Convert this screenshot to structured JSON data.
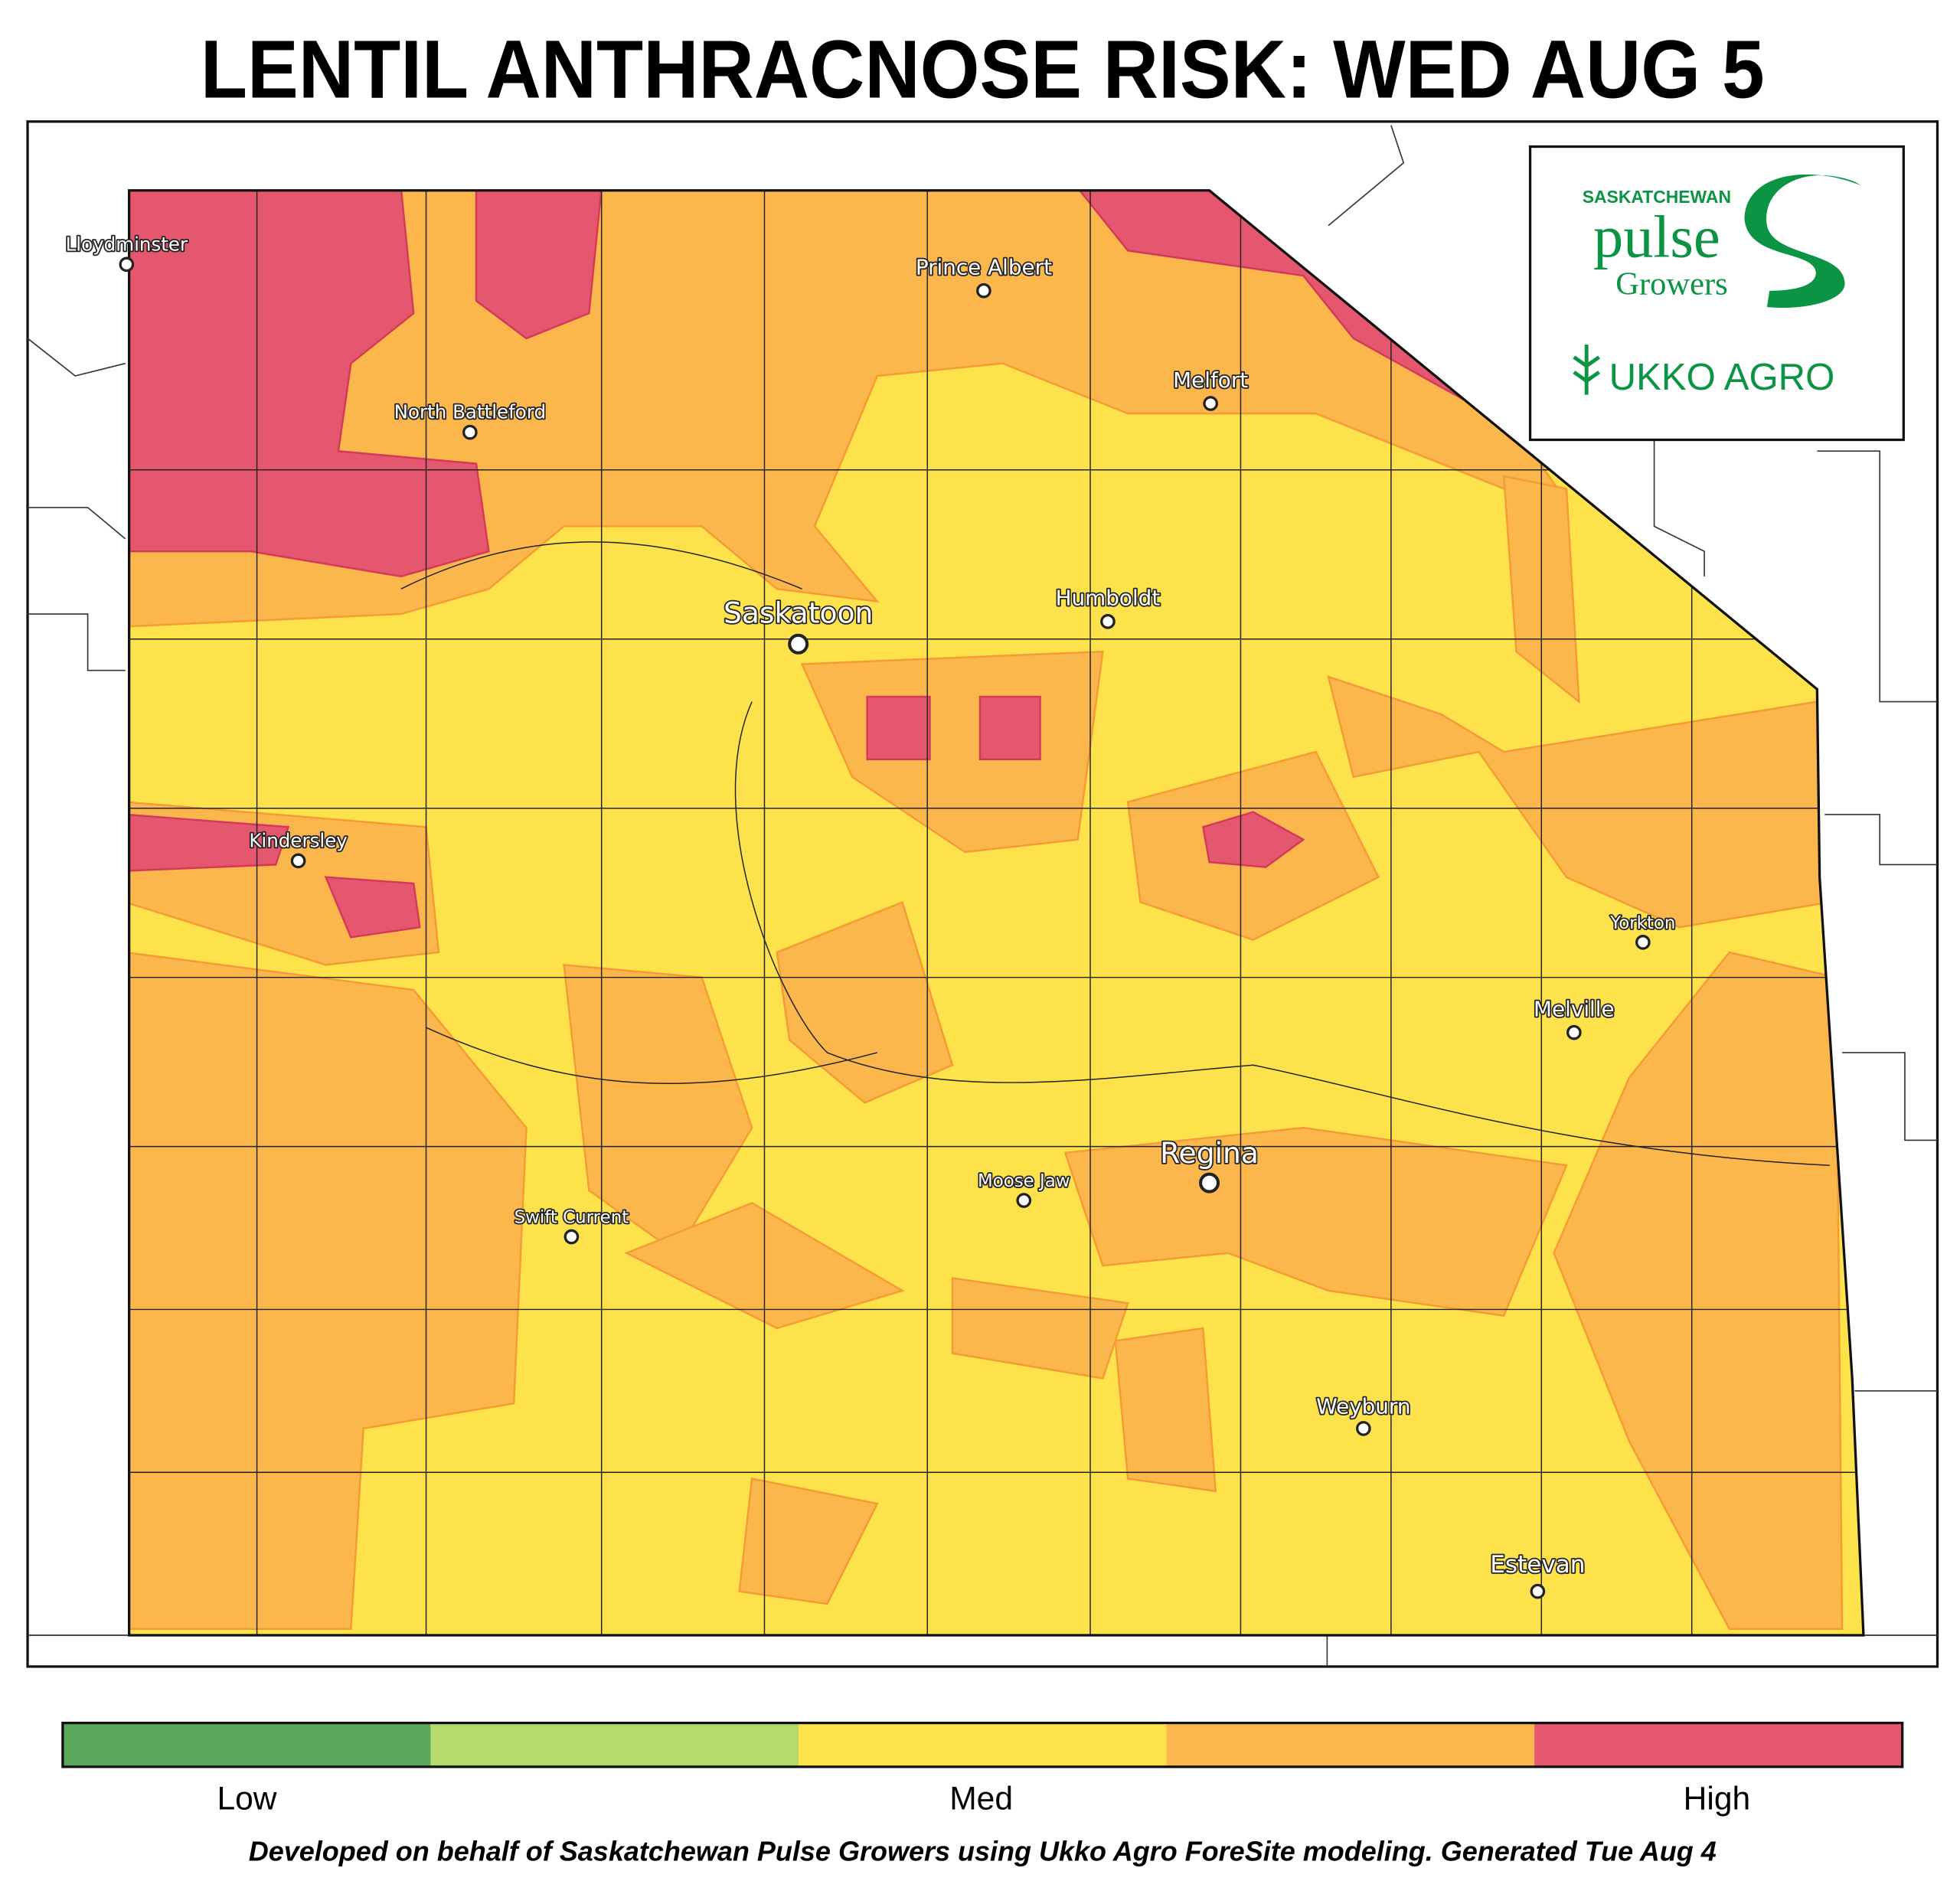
{
  "title": "LENTIL ANTHRACNOSE RISK: WED AUG 5",
  "cities": [
    "Lloydminster",
    "Prince Albert",
    "Melfort",
    "North Battleford",
    "Saskatoon",
    "Humboldt",
    "Kindersley",
    "Yorkton",
    "Melville",
    "Regina",
    "Moose Jaw",
    "Swift Current",
    "Weyburn",
    "Estevan"
  ],
  "logo": {
    "line1": "SASKATCHEWAN",
    "line2": "pulse",
    "line3": "Growers",
    "line4": "UKKO AGRO"
  },
  "legend": {
    "colors": [
      "#5ba85a",
      "#b6d96c",
      "#fde24b",
      "#fbb64c",
      "#e5566f"
    ],
    "labels": [
      "Low",
      "Med",
      "High"
    ]
  },
  "footer": "Developed on behalf of Saskatchewan Pulse Growers using Ukko Agro ForeSite modeling. Generated Tue Aug 4"
}
